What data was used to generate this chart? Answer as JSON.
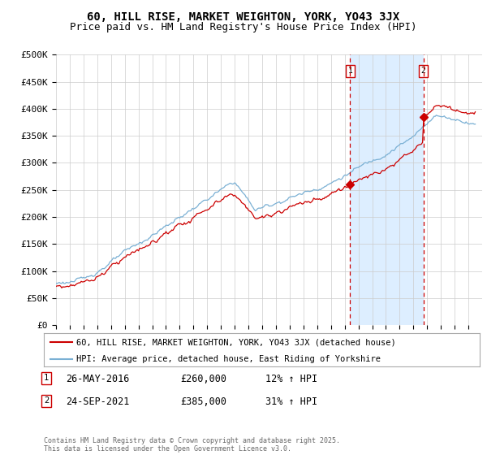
{
  "title": "60, HILL RISE, MARKET WEIGHTON, YORK, YO43 3JX",
  "subtitle": "Price paid vs. HM Land Registry's House Price Index (HPI)",
  "ylabel_ticks": [
    "£0",
    "£50K",
    "£100K",
    "£150K",
    "£200K",
    "£250K",
    "£300K",
    "£350K",
    "£400K",
    "£450K",
    "£500K"
  ],
  "ytick_values": [
    0,
    50000,
    100000,
    150000,
    200000,
    250000,
    300000,
    350000,
    400000,
    450000,
    500000
  ],
  "xlim_start": 1995,
  "xlim_end": 2026,
  "ylim_min": 0,
  "ylim_max": 500000,
  "red_line_color": "#cc0000",
  "blue_line_color": "#7ab0d4",
  "shade_color": "#ddeeff",
  "grid_color": "#cccccc",
  "background_color": "#ffffff",
  "legend1_label": "60, HILL RISE, MARKET WEIGHTON, YORK, YO43 3JX (detached house)",
  "legend2_label": "HPI: Average price, detached house, East Riding of Yorkshire",
  "marker1_date": "26-MAY-2016",
  "marker1_price": "£260,000",
  "marker1_hpi": "12% ↑ HPI",
  "marker1_label": "1",
  "marker1_year": 2016.4,
  "marker1_value": 260000,
  "marker2_date": "24-SEP-2021",
  "marker2_price": "£385,000",
  "marker2_hpi": "31% ↑ HPI",
  "marker2_label": "2",
  "marker2_year": 2021.73,
  "marker2_value": 385000,
  "footer": "Contains HM Land Registry data © Crown copyright and database right 2025.\nThis data is licensed under the Open Government Licence v3.0.",
  "title_fontsize": 10,
  "subtitle_fontsize": 9,
  "tick_fontsize": 8,
  "legend_fontsize": 8
}
